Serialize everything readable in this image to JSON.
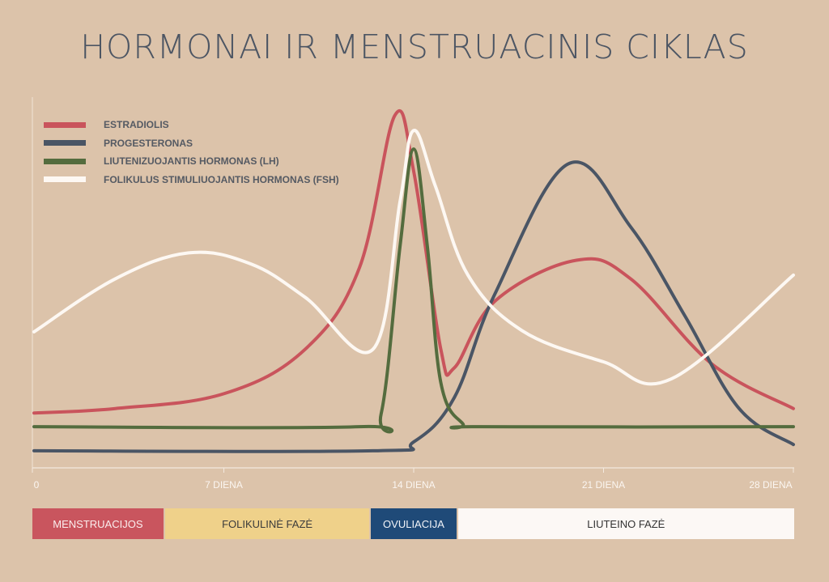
{
  "chart_data": {
    "type": "line",
    "title": "HORMONAI IR MENSTRUACINIS CIKLAS",
    "xlabel": "",
    "ylabel": "",
    "xlim": [
      0,
      28
    ],
    "ylim": [
      0,
      100
    ],
    "grid": false,
    "legend_position": "top-left",
    "x_ticks": [
      {
        "value": 0,
        "label": "0"
      },
      {
        "value": 7,
        "label": "7 DIENA"
      },
      {
        "value": 14,
        "label": "14 DIENA"
      },
      {
        "value": 21,
        "label": "21 DIENA"
      },
      {
        "value": 28,
        "label": "28 DIENA"
      }
    ],
    "series": [
      {
        "name": "ESTRADIOLIS",
        "color": "#c9545c",
        "points": [
          [
            0,
            14.8
          ],
          [
            3,
            16
          ],
          [
            7,
            20
          ],
          [
            10,
            32
          ],
          [
            12,
            54
          ],
          [
            13.3,
            95
          ],
          [
            14,
            80
          ],
          [
            15,
            32
          ],
          [
            15.5,
            27
          ],
          [
            17,
            45
          ],
          [
            20,
            56
          ],
          [
            22,
            51
          ],
          [
            25,
            28
          ],
          [
            28,
            16
          ]
        ]
      },
      {
        "name": "PROGESTERONAS",
        "color": "#4a5565",
        "points": [
          [
            0,
            4.6
          ],
          [
            12.5,
            4.6
          ],
          [
            14,
            7
          ],
          [
            15.5,
            19
          ],
          [
            17,
            47
          ],
          [
            19.7,
            82
          ],
          [
            22,
            65
          ],
          [
            24,
            41
          ],
          [
            26,
            16
          ],
          [
            28,
            6.3
          ]
        ]
      },
      {
        "name": "LIUTENIZUOJANTIS HORMONAS (LH)",
        "color": "#546c3e",
        "points": [
          [
            0,
            11.1
          ],
          [
            12,
            11.1
          ],
          [
            12.8,
            14.6
          ],
          [
            13.5,
            60
          ],
          [
            14,
            86
          ],
          [
            14.5,
            60
          ],
          [
            15,
            23
          ],
          [
            15.8,
            12
          ],
          [
            16.5,
            11.1
          ],
          [
            28,
            11.1
          ]
        ]
      },
      {
        "name": "FOLIKULUS STIMULIUOJANTIS HORMONAS (FSH)",
        "color": "#fdf8f3",
        "points": [
          [
            0,
            36.7
          ],
          [
            3,
            51
          ],
          [
            5.7,
            58
          ],
          [
            8,
            55
          ],
          [
            10,
            46
          ],
          [
            12.5,
            32
          ],
          [
            13.5,
            72
          ],
          [
            14,
            91
          ],
          [
            14.8,
            76
          ],
          [
            16,
            52
          ],
          [
            18,
            37
          ],
          [
            21,
            28.6
          ],
          [
            23.5,
            24
          ],
          [
            28,
            52
          ]
        ]
      }
    ],
    "phases": [
      {
        "label": "MENSTRUACIJOS",
        "start": 0,
        "end": 4.8,
        "color": "#c9555e",
        "text_color": "#fbeeee"
      },
      {
        "label": "FOLIKULINĖ FAZĖ",
        "start": 4.8,
        "end": 12.4,
        "color": "#efd18a",
        "text_color": "#3b3b3b"
      },
      {
        "label": "OVULIACIJA",
        "start": 12.4,
        "end": 15.6,
        "color": "#1f4a78",
        "text_color": "#f2f4f8"
      },
      {
        "label": "LIUTEINO FAZĖ",
        "start": 15.6,
        "end": 28,
        "color": "#fcf8f5",
        "text_color": "#333333"
      }
    ]
  }
}
